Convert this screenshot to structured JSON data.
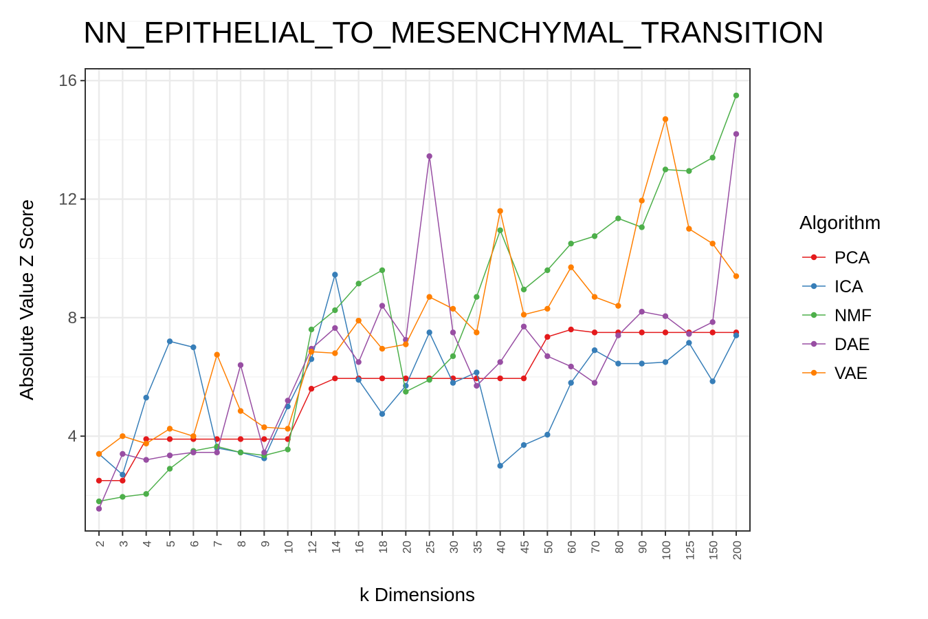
{
  "chart_data": {
    "type": "line",
    "title": "NN_EPITHELIAL_TO_MESENCHYMAL_TRANSITION",
    "xlabel": "k Dimensions",
    "ylabel": "Absolute Value Z Score",
    "categories": [
      "2",
      "3",
      "4",
      "5",
      "6",
      "7",
      "8",
      "9",
      "10",
      "12",
      "14",
      "16",
      "18",
      "20",
      "25",
      "30",
      "35",
      "40",
      "45",
      "50",
      "60",
      "70",
      "80",
      "90",
      "100",
      "125",
      "150",
      "200"
    ],
    "ylim": [
      0.8,
      16.4
    ],
    "yticks": [
      4,
      8,
      12,
      16
    ],
    "grid": true,
    "legend": {
      "title": "Algorithm",
      "position": "right"
    },
    "series": [
      {
        "name": "PCA",
        "color": "#e41a1c",
        "values": [
          2.5,
          2.5,
          3.9,
          3.9,
          3.9,
          3.9,
          3.9,
          3.9,
          3.9,
          5.6,
          5.95,
          5.95,
          5.95,
          5.95,
          5.95,
          5.95,
          5.95,
          5.95,
          5.95,
          7.35,
          7.6,
          7.5,
          7.5,
          7.5,
          7.5,
          7.5,
          7.5,
          7.5
        ]
      },
      {
        "name": "ICA",
        "color": "#377eb8",
        "values": [
          3.4,
          2.7,
          5.3,
          7.2,
          7.0,
          3.6,
          3.45,
          3.25,
          5.0,
          6.6,
          9.45,
          5.9,
          4.75,
          5.7,
          7.5,
          5.8,
          6.15,
          3.0,
          3.7,
          4.05,
          5.8,
          6.9,
          6.45,
          6.45,
          6.5,
          7.15,
          5.85,
          7.4
        ]
      },
      {
        "name": "NMF",
        "color": "#4daf4a",
        "values": [
          1.8,
          1.95,
          2.05,
          2.9,
          3.5,
          3.65,
          3.45,
          3.35,
          3.55,
          7.6,
          8.25,
          9.15,
          9.6,
          5.5,
          5.9,
          6.7,
          8.7,
          10.95,
          8.95,
          9.6,
          10.5,
          10.75,
          11.35,
          11.05,
          13.0,
          12.95,
          13.4,
          15.5
        ]
      },
      {
        "name": "DAE",
        "color": "#984ea3",
        "values": [
          1.55,
          3.4,
          3.2,
          3.35,
          3.45,
          3.45,
          6.4,
          3.45,
          5.2,
          6.95,
          7.65,
          6.5,
          8.4,
          7.25,
          13.45,
          7.5,
          5.7,
          6.5,
          7.7,
          6.7,
          6.35,
          5.8,
          7.4,
          8.2,
          8.05,
          7.45,
          7.85,
          14.2
        ]
      },
      {
        "name": "VAE",
        "color": "#ff7f00",
        "values": [
          3.4,
          4.0,
          3.75,
          4.25,
          4.0,
          6.75,
          4.85,
          4.3,
          4.25,
          6.85,
          6.8,
          7.9,
          6.95,
          7.1,
          8.7,
          8.3,
          7.5,
          11.6,
          8.1,
          8.3,
          9.7,
          8.7,
          8.4,
          11.95,
          14.7,
          11.0,
          10.5,
          9.4
        ]
      }
    ]
  }
}
